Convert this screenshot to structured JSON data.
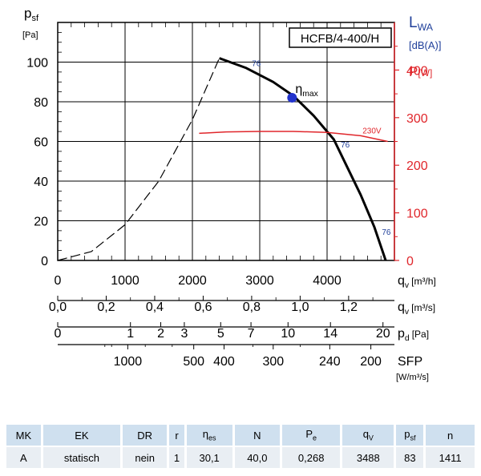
{
  "chart_data": {
    "type": "line",
    "model_label": "HCFB/4-400/H",
    "left_axis": {
      "symbol": "p",
      "subscript": "sf",
      "unit": "[Pa]",
      "ticks": [
        0,
        20,
        40,
        60,
        80,
        100
      ],
      "ylim": [
        0,
        120
      ]
    },
    "right_axis_lwa": {
      "symbol": "L",
      "subscript": "WA",
      "unit": "[dB(A)]",
      "color": "#1f3f9a"
    },
    "right_axis_power": {
      "symbol": "P",
      "unit": "[W]",
      "ticks": [
        0,
        100,
        200,
        300,
        400
      ],
      "color": "#e0262b"
    },
    "x_axes": [
      {
        "id": "m3h",
        "symbol": "q",
        "subscript": "v",
        "unit": "[m³/h]",
        "ticks": [
          {
            "label": "0",
            "v": 0
          },
          {
            "label": "1000",
            "v": 1000
          },
          {
            "label": "2000",
            "v": 2000
          },
          {
            "label": "3000",
            "v": 3000
          },
          {
            "label": "4000",
            "v": 4000
          }
        ]
      },
      {
        "id": "m3s",
        "symbol": "q",
        "subscript": "v",
        "unit": "[m³/s]",
        "ticks": [
          {
            "label": "0,0",
            "v": 0
          },
          {
            "label": "0,2",
            "v": 720
          },
          {
            "label": "0,4",
            "v": 1440
          },
          {
            "label": "0,6",
            "v": 2160
          },
          {
            "label": "0,8",
            "v": 2880
          },
          {
            "label": "1,0",
            "v": 3600
          },
          {
            "label": "1,2",
            "v": 4320
          }
        ]
      },
      {
        "id": "pd",
        "symbol": "p",
        "subscript": "d",
        "unit": "[Pa]",
        "ticks": [
          {
            "label": "0",
            "v": 0
          },
          {
            "label": "1",
            "v": 1080
          },
          {
            "label": "2",
            "v": 1530
          },
          {
            "label": "3",
            "v": 1880
          },
          {
            "label": "5",
            "v": 2420
          },
          {
            "label": "7",
            "v": 2870
          },
          {
            "label": "10",
            "v": 3420
          },
          {
            "label": "14",
            "v": 4050
          },
          {
            "label": "20",
            "v": 4830
          }
        ]
      },
      {
        "id": "sfp",
        "symbol": "SFP",
        "unit": "[W/m³/s]",
        "ticks": [
          {
            "label": "1000",
            "v": 1040
          },
          {
            "label": "500",
            "v": 2020
          },
          {
            "label": "400",
            "v": 2470
          },
          {
            "label": "300",
            "v": 3200
          },
          {
            "label": "240",
            "v": 4040
          },
          {
            "label": "200",
            "v": 4650
          }
        ]
      }
    ],
    "xlim": [
      0,
      5000
    ],
    "series": [
      {
        "id": "pressure",
        "x": [
          2400,
          2800,
          3200,
          3500,
          3800,
          4100,
          4300,
          4500,
          4700,
          4870
        ],
        "y": [
          102,
          97,
          90,
          83,
          73,
          61,
          47,
          33,
          17,
          0
        ],
        "color": "#000000"
      },
      {
        "id": "system_curve",
        "x": [
          0,
          500,
          1000,
          1500,
          2000,
          2400
        ],
        "y": [
          0,
          4.5,
          18,
          40,
          71,
          102
        ],
        "color": "#000000",
        "dashed": true
      },
      {
        "id": "power_230v",
        "name": "230V",
        "x": [
          2100,
          2500,
          3000,
          3500,
          4000,
          4500,
          4900
        ],
        "y": [
          267,
          270,
          271,
          271,
          269,
          262,
          250
        ],
        "color": "#e0262b",
        "axis": "power"
      }
    ],
    "annotations": [
      {
        "text": "76",
        "x": 2950,
        "y": 98,
        "color": "#1f3f9a"
      },
      {
        "text": "76",
        "x": 4270,
        "y": 57,
        "color": "#1f3f9a"
      },
      {
        "text": "76",
        "x": 4880,
        "y": 13,
        "color": "#1f3f9a"
      }
    ],
    "eta_max": {
      "symbol": "η",
      "subscript": "max",
      "x": 3480,
      "y": 82,
      "color": "#2233cc"
    }
  },
  "table": {
    "headers": [
      {
        "main": "MK",
        "sub": ""
      },
      {
        "main": "EK",
        "sub": ""
      },
      {
        "main": "DR",
        "sub": ""
      },
      {
        "main": "r",
        "sub": ""
      },
      {
        "main": "η",
        "sub": "es"
      },
      {
        "main": "N",
        "sub": ""
      },
      {
        "main": "P",
        "sub": "e"
      },
      {
        "main": "q",
        "sub": "V"
      },
      {
        "main": "p",
        "sub": "sf"
      },
      {
        "main": "n",
        "sub": ""
      }
    ],
    "row": [
      "A",
      "statisch",
      "nein",
      "1",
      "30,1",
      "40,0",
      "0,268",
      "3488",
      "83",
      "1411"
    ]
  }
}
